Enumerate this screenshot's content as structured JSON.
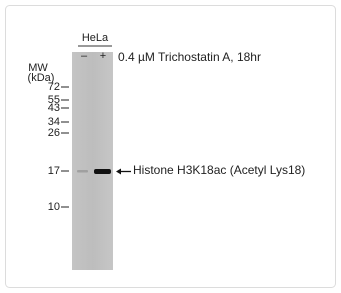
{
  "header": {
    "cell_line": "HeLa",
    "lanes": [
      "–",
      "+"
    ],
    "treatment": "0.4 µM Trichostatin A, 18hr"
  },
  "ladder": {
    "title": "MW",
    "unit": "(kDa)",
    "markers": [
      "72",
      "55",
      "43",
      "34",
      "26",
      "17",
      "10"
    ]
  },
  "band_label": "Histone H3K18ac (Acetyl Lys18)"
}
